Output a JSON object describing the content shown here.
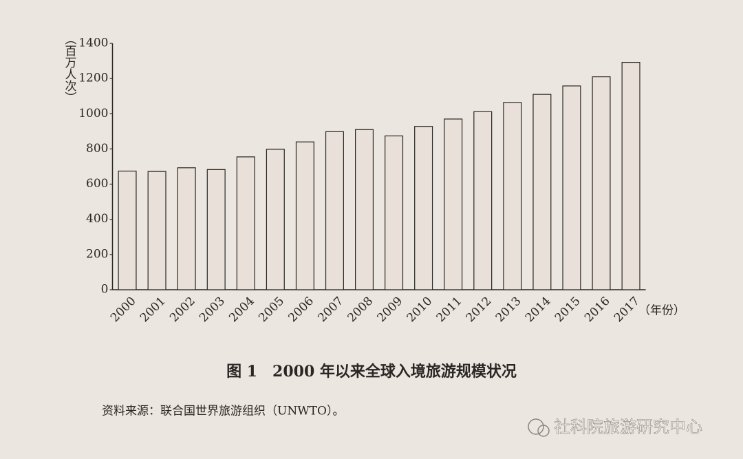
{
  "chart_data": {
    "type": "bar",
    "title": "图 1　2000 年以来全球入境旅游规模状况",
    "source": "资料来源：联合国世界旅游组织（UNWTO）。",
    "y_label": "（百万人次）",
    "x_label": "（年份）",
    "categories": [
      "2000",
      "2001",
      "2002",
      "2003",
      "2004",
      "2005",
      "2006",
      "2007",
      "2008",
      "2009",
      "2010",
      "2011",
      "2012",
      "2013",
      "2014",
      "2015",
      "2016",
      "2017"
    ],
    "values": [
      674,
      672,
      693,
      683,
      755,
      798,
      840,
      898,
      910,
      874,
      928,
      970,
      1012,
      1064,
      1110,
      1158,
      1210,
      1292
    ],
    "color": "#e8e0d9",
    "ylim": [
      0,
      1400
    ],
    "yticks": [
      0,
      200,
      400,
      600,
      800,
      1000,
      1200,
      1400
    ],
    "grid": false
  },
  "watermark": "社科院旅游研究中心"
}
